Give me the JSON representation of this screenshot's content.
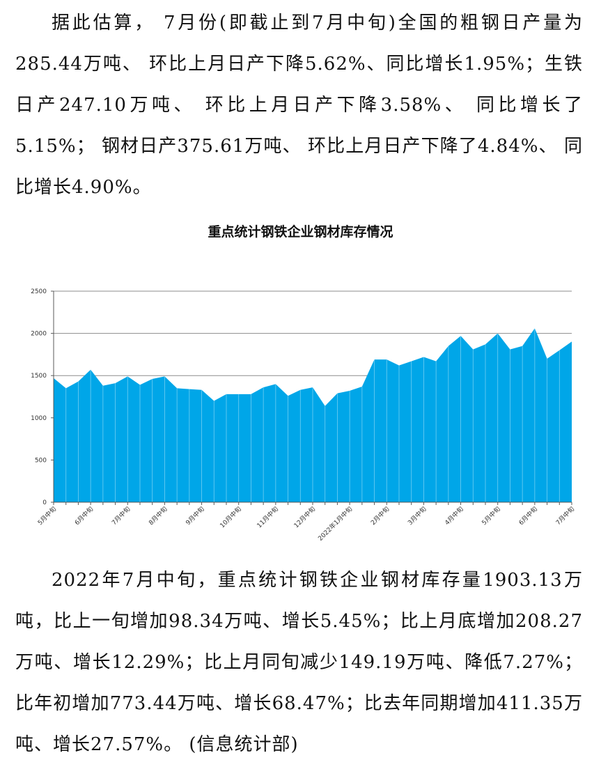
{
  "document": {
    "paragraph_top": "据此估算， 7月份(即截止到7月中旬)全国的粗钢日产量为285.44万吨、 环比上月日产下降5.62%、同比增长1.95%；生铁日产247.10万吨、 环比上月日产下降3.58%、 同比增长了5.15%； 钢材日产375.61万吨、 环比上月日产下降了4.84%、 同比增长4.90%。",
    "paragraph_bottom": "2022年7月中旬，重点统计钢铁企业钢材库存量1903.13万吨，比上一旬增加98.34万吨、增长5.45%；比上月底增加208.27万吨、增长12.29%；比上月同旬减少149.19万吨、降低7.27%；比年初增加773.44万吨、增长68.47%；比去年同期增加411.35万吨、增长27.57%。 (信息统计部)"
  },
  "chart_data": {
    "type": "area",
    "title": "重点统计钢铁企业钢材库存情况",
    "xlabel": "",
    "ylabel": "",
    "ylim": [
      0,
      2500
    ],
    "yticks": [
      0,
      500,
      1000,
      1500,
      2000,
      2500
    ],
    "grid": true,
    "fill_color": "#00A6E8",
    "x_tick_labels": [
      "5月中旬",
      "6月中旬",
      "7月中旬",
      "8月中旬",
      "9月中旬",
      "10月中旬",
      "11月中旬",
      "12月中旬",
      "2022年1月中旬",
      "2月中旬",
      "3月中旬",
      "4月中旬",
      "5月中旬",
      "6月中旬",
      "7月中旬"
    ],
    "x_tick_positions": [
      0,
      3,
      6,
      9,
      12,
      15,
      18,
      21,
      24,
      27,
      30,
      33,
      36,
      39,
      42
    ],
    "values": [
      1470,
      1350,
      1430,
      1570,
      1380,
      1410,
      1490,
      1390,
      1460,
      1490,
      1350,
      1340,
      1330,
      1200,
      1280,
      1280,
      1280,
      1360,
      1400,
      1260,
      1330,
      1360,
      1140,
      1290,
      1320,
      1370,
      1690,
      1690,
      1620,
      1670,
      1720,
      1670,
      1850,
      1970,
      1810,
      1870,
      2000,
      1810,
      1850,
      2060,
      1700,
      1800,
      1903
    ]
  }
}
